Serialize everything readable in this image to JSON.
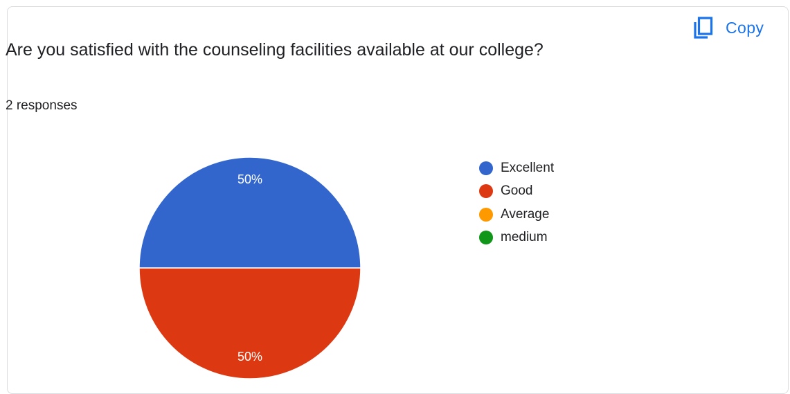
{
  "header": {
    "copy_label": "Copy",
    "copy_icon": "copy-icon"
  },
  "question": {
    "title": "Are you satisfied with the counseling facilities available at our college?",
    "responses_text": "2 responses"
  },
  "colors": {
    "accent": "#1a73e8",
    "card_border": "#dadce0",
    "text": "#202124",
    "slice_label": "#ffffff"
  },
  "chart_data": {
    "type": "pie",
    "title": "",
    "legend_position": "right",
    "slices": [
      {
        "label": "Excellent",
        "value": 1,
        "percent_label": "50%",
        "color": "#3366cc"
      },
      {
        "label": "Good",
        "value": 1,
        "percent_label": "50%",
        "color": "#dc3912"
      },
      {
        "label": "Average",
        "value": 0,
        "percent_label": "",
        "color": "#ff9900"
      },
      {
        "label": "medium",
        "value": 0,
        "percent_label": "",
        "color": "#109618"
      }
    ]
  }
}
